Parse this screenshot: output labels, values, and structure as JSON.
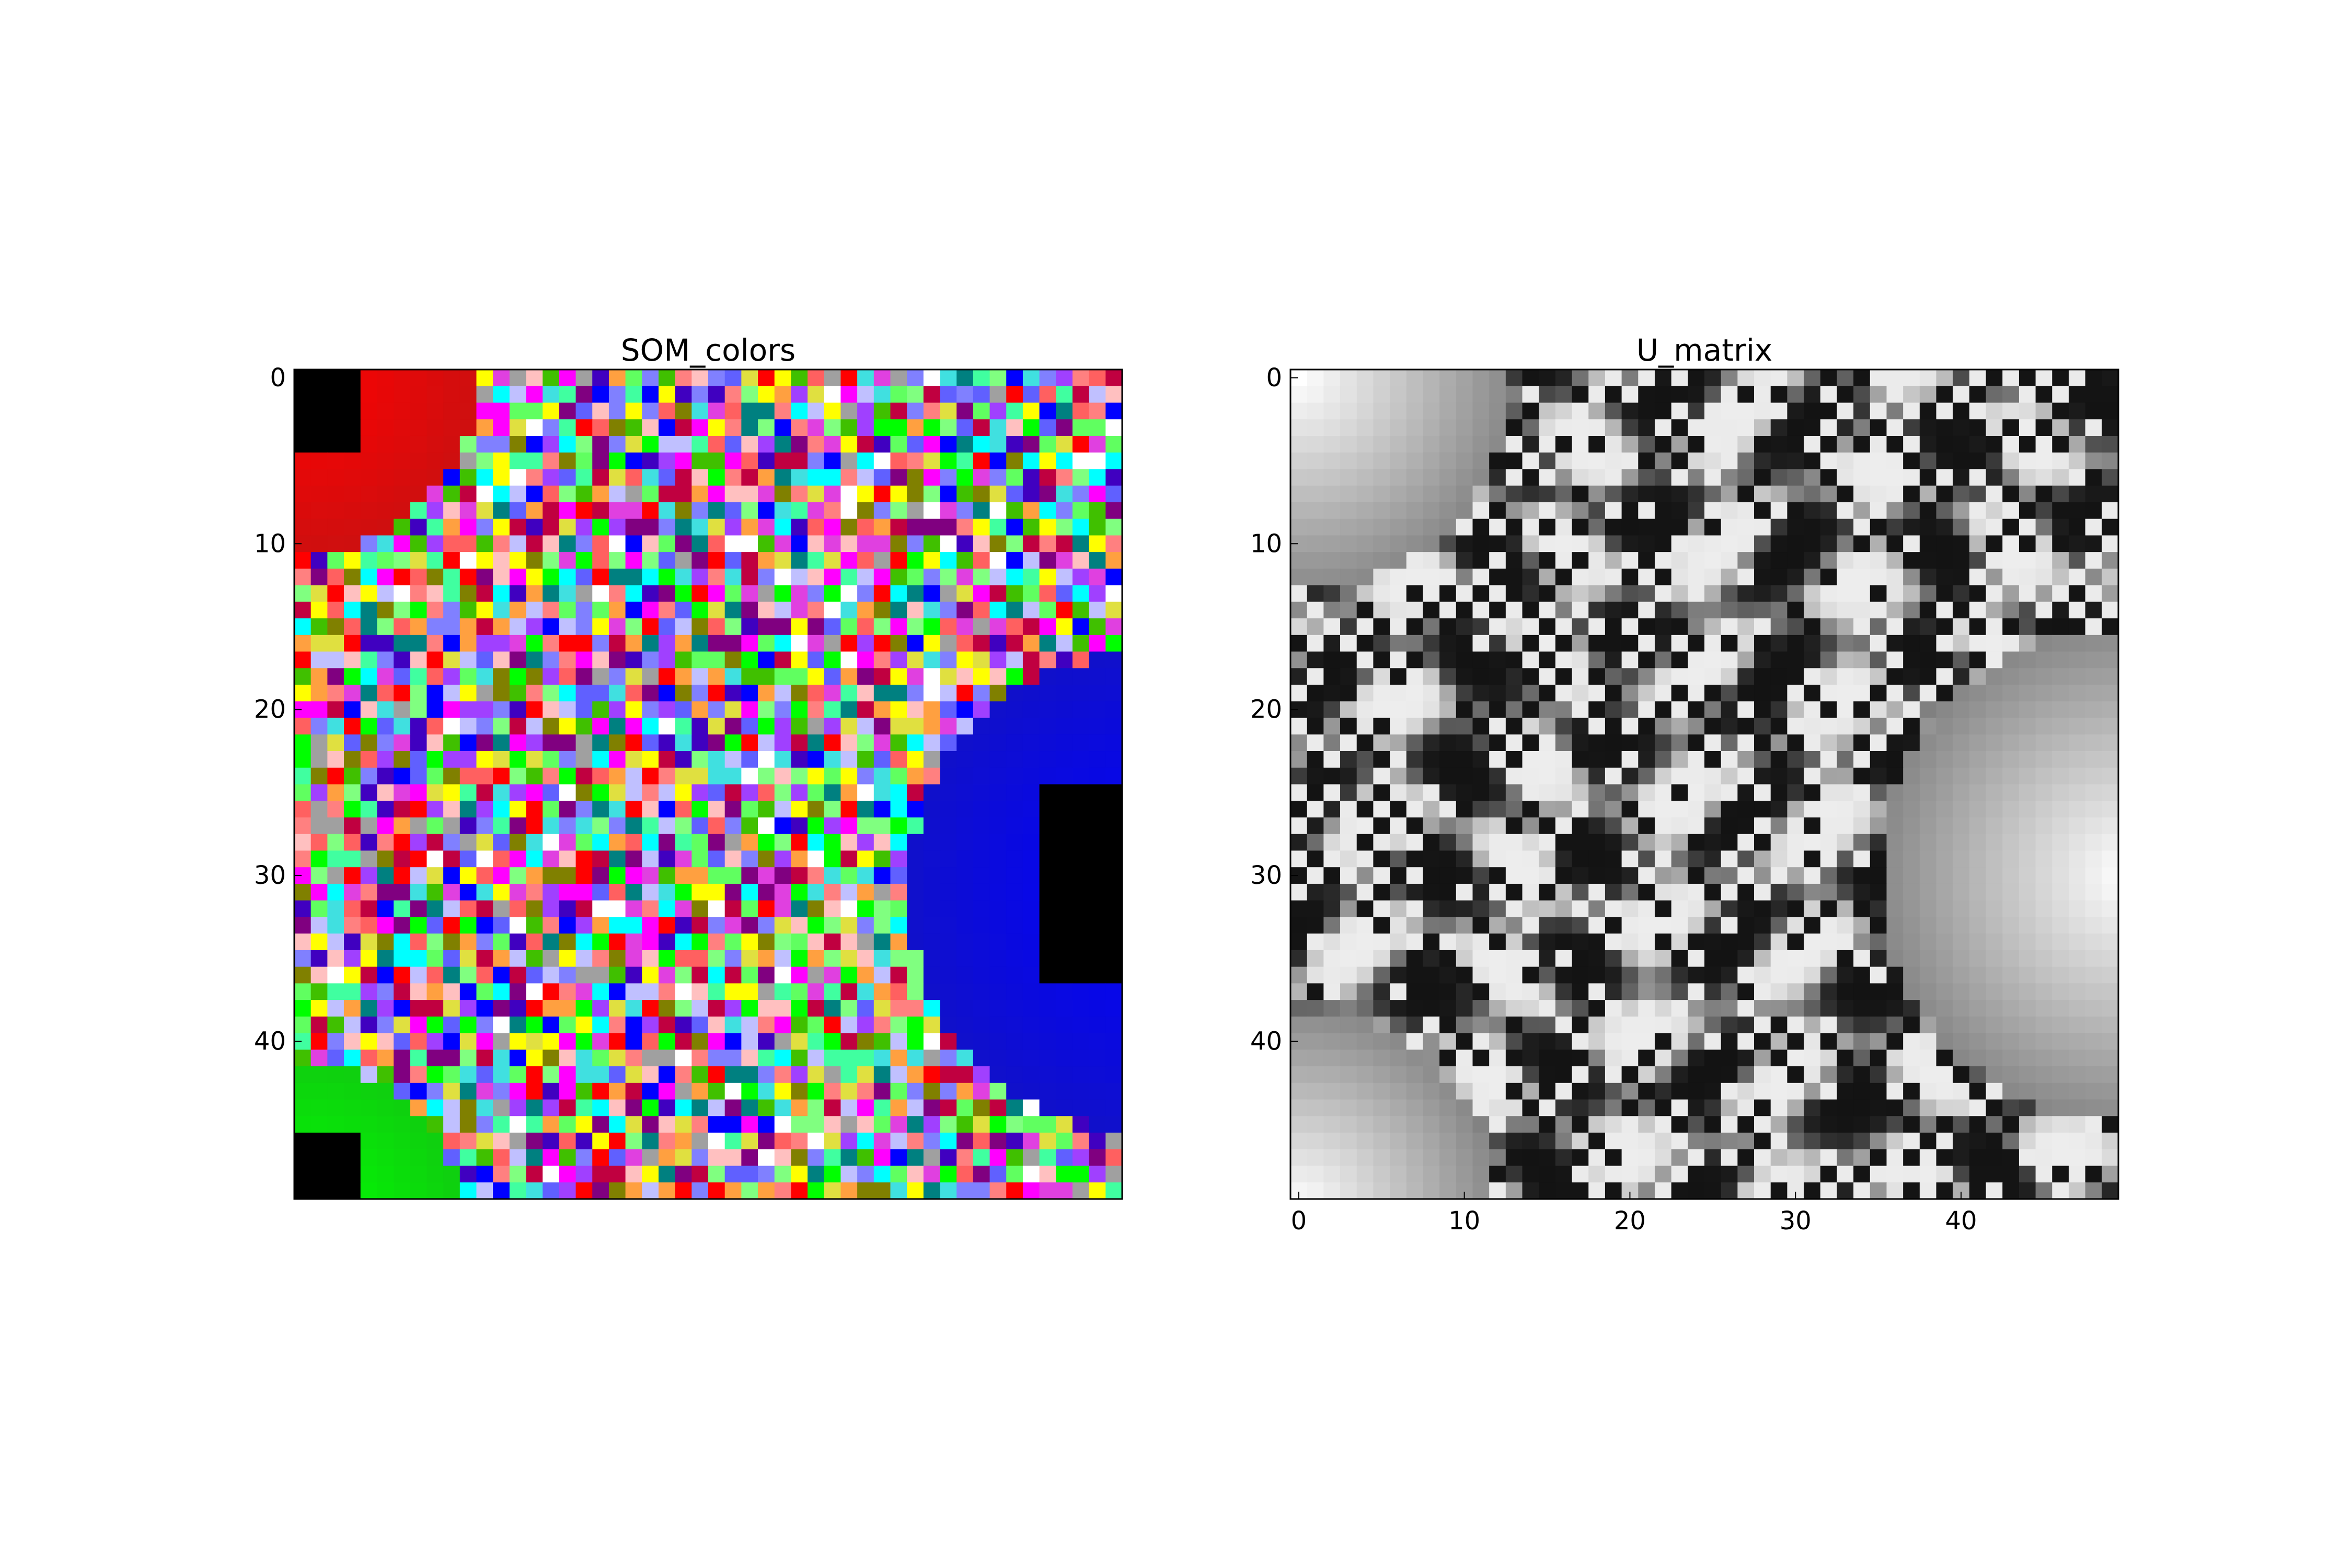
{
  "chart_data": [
    {
      "type": "heatmap",
      "title": "SOM_colors",
      "xlabel": "",
      "ylabel": "",
      "grid_size": [
        50,
        50
      ],
      "yticks": [
        0,
        10,
        20,
        30,
        40
      ],
      "xticks": [],
      "grid": false,
      "cell_colors": "random RGB per cell, with smooth regions: red top-left, blue right-middle, green bottom-left; black cells in corners",
      "regions": [
        {
          "color": "#ff0000",
          "label": ""
        },
        {
          "color": "#0000ff",
          "label": ""
        },
        {
          "color": "#00ff00",
          "label": ""
        },
        {
          "color": "#000000",
          "label": ""
        }
      ]
    },
    {
      "type": "heatmap",
      "title": "U_matrix",
      "xlabel": "",
      "ylabel": "",
      "grid_size": [
        50,
        50
      ],
      "xticks": [
        0,
        10,
        20,
        30,
        40
      ],
      "yticks": [
        0,
        10,
        20,
        30,
        40
      ],
      "xlim": [
        -0.5,
        49.5
      ],
      "ylim": [
        49.5,
        -0.5
      ],
      "colormap": "gray",
      "grid": false
    }
  ]
}
